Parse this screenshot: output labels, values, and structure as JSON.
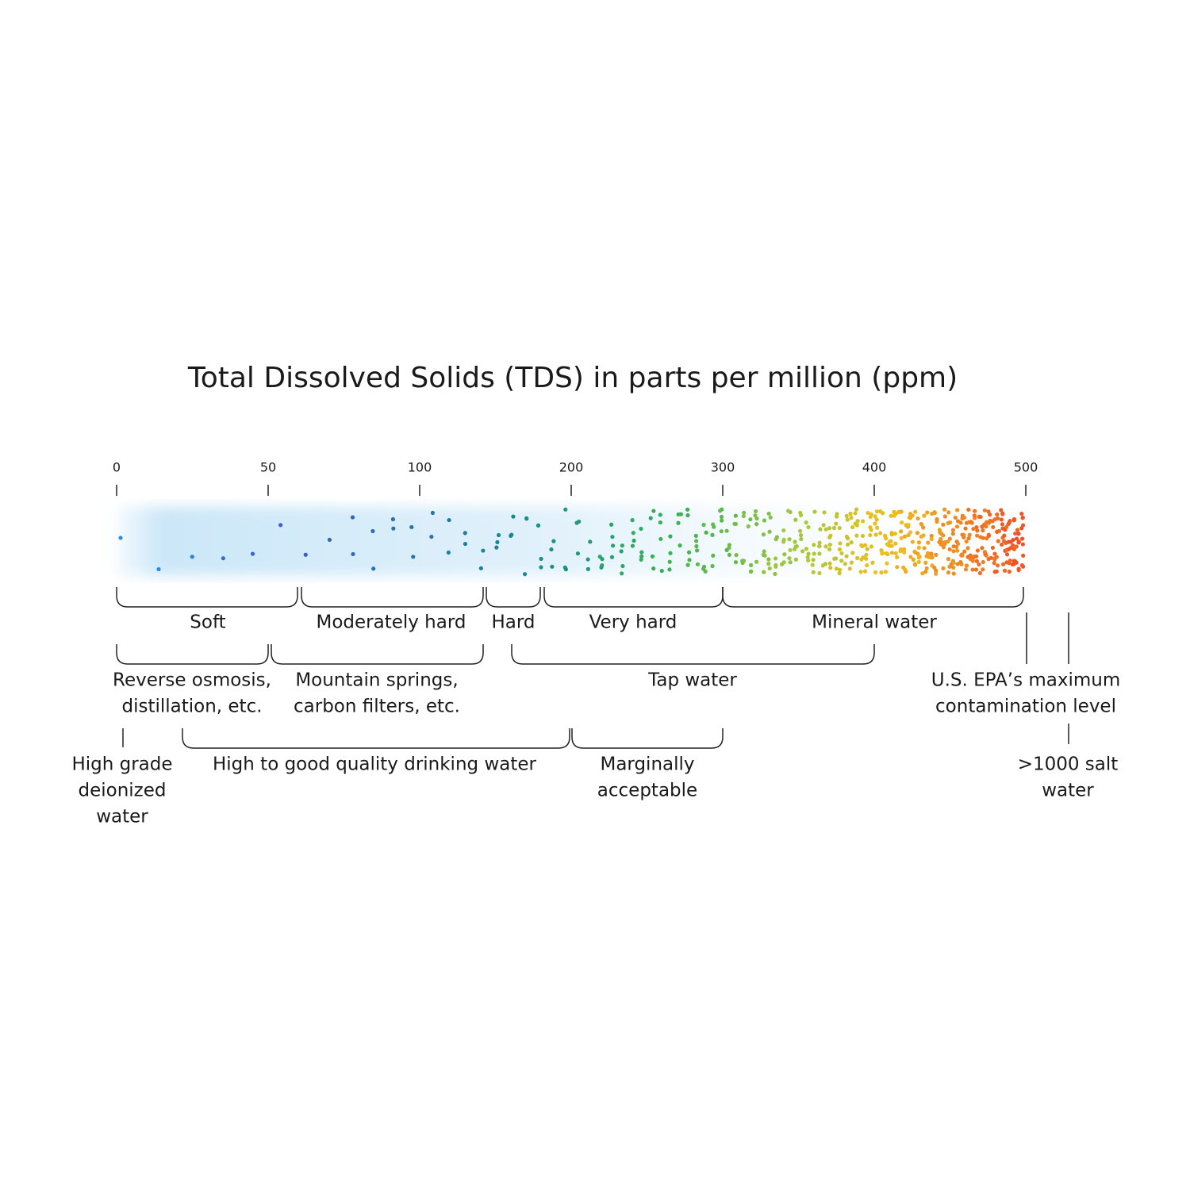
{
  "title": "Total Dissolved Solids (TDS) in parts per million (ppm)",
  "scale": {
    "ticks": [
      "0",
      "50",
      "100",
      "200",
      "300",
      "400",
      "500"
    ]
  },
  "hardness": [
    "Soft",
    "Moderately hard",
    "Hard",
    "Very hard",
    "Mineral water"
  ],
  "sources": [
    [
      "Reverse osmosis,",
      "distillation, etc."
    ],
    [
      "Mountain springs,",
      "carbon filters, etc."
    ],
    [
      "Tap water"
    ]
  ],
  "quality": [
    [
      "High grade",
      "deionized",
      "water"
    ],
    [
      "High to good quality drinking water"
    ],
    [
      "Marginally",
      "acceptable"
    ]
  ],
  "limits": [
    [
      "U.S. EPA’s maximum",
      "contamination level"
    ],
    [
      ">1000 salt",
      "water"
    ]
  ]
}
